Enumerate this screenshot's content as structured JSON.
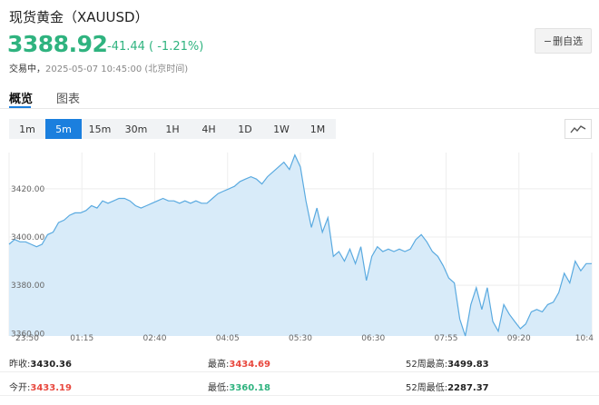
{
  "header": {
    "title": "现货黄金（XAUUSD）",
    "price": "3388.92",
    "change": "-41.44 ( -1.21%)",
    "status_label": "交易中，",
    "status_time": "2025-05-07 10:45:00 (北京时间)",
    "watch_button_label": "删自选"
  },
  "tabs": [
    {
      "label": "概览",
      "active": true
    },
    {
      "label": "图表",
      "active": false
    }
  ],
  "periods": [
    {
      "label": "1m",
      "active": false
    },
    {
      "label": "5m",
      "active": true
    },
    {
      "label": "15m",
      "active": false
    },
    {
      "label": "30m",
      "active": false
    },
    {
      "label": "1H",
      "active": false
    },
    {
      "label": "4H",
      "active": false
    },
    {
      "label": "1D",
      "active": false
    },
    {
      "label": "1W",
      "active": false
    },
    {
      "label": "1M",
      "active": false
    }
  ],
  "colors": {
    "accent": "#1b7fde",
    "down": "#2fb37f",
    "up": "#e8483e",
    "line": "#5aaae0",
    "fill": "#d8ebf9"
  },
  "chart_data": {
    "type": "area",
    "ylim": [
      3359,
      3435
    ],
    "yticks": [
      "3420.00",
      "3400.00",
      "3380.00",
      "3360.00"
    ],
    "ytick_values": [
      3420,
      3400,
      3380,
      3360
    ],
    "xticks": [
      "23:50",
      "01:15",
      "02:40",
      "04:05",
      "05:30",
      "06:30",
      "07:55",
      "09:20",
      "10:4"
    ],
    "grid": true,
    "values": [
      3397,
      3399,
      3398,
      3398,
      3397,
      3396,
      3397,
      3401,
      3402,
      3406,
      3407,
      3409,
      3410,
      3410,
      3411,
      3413,
      3412,
      3415,
      3414,
      3415,
      3416,
      3416,
      3415,
      3413,
      3412,
      3413,
      3414,
      3415,
      3416,
      3415,
      3415,
      3414,
      3415,
      3414,
      3415,
      3414,
      3414,
      3416,
      3418,
      3419,
      3420,
      3421,
      3423,
      3424,
      3425,
      3424,
      3422,
      3425,
      3427,
      3429,
      3431,
      3428,
      3434,
      3429,
      3415,
      3404,
      3412,
      3402,
      3408,
      3392,
      3394,
      3390,
      3395,
      3389,
      3396,
      3382,
      3392,
      3396,
      3394,
      3395,
      3394,
      3395,
      3394,
      3395,
      3399,
      3401,
      3398,
      3394,
      3392,
      3388,
      3383,
      3381,
      3366,
      3359,
      3372,
      3379,
      3370,
      3379,
      3365,
      3361,
      3372,
      3368,
      3365,
      3362,
      3364,
      3369,
      3370,
      3369,
      3372,
      3373,
      3377,
      3385,
      3381,
      3390,
      3386,
      3389,
      3389
    ]
  },
  "stats": [
    [
      {
        "label": "昨收:",
        "value": "3430.36",
        "color": ""
      },
      {
        "label": "最高:",
        "value": "3434.69",
        "color": "red"
      },
      {
        "label": "52周最高:",
        "value": "3499.83",
        "color": ""
      }
    ],
    [
      {
        "label": "今开:",
        "value": "3433.19",
        "color": "red"
      },
      {
        "label": "最低:",
        "value": "3360.18",
        "color": "green"
      },
      {
        "label": "52周最低:",
        "value": "2287.37",
        "color": ""
      }
    ]
  ]
}
